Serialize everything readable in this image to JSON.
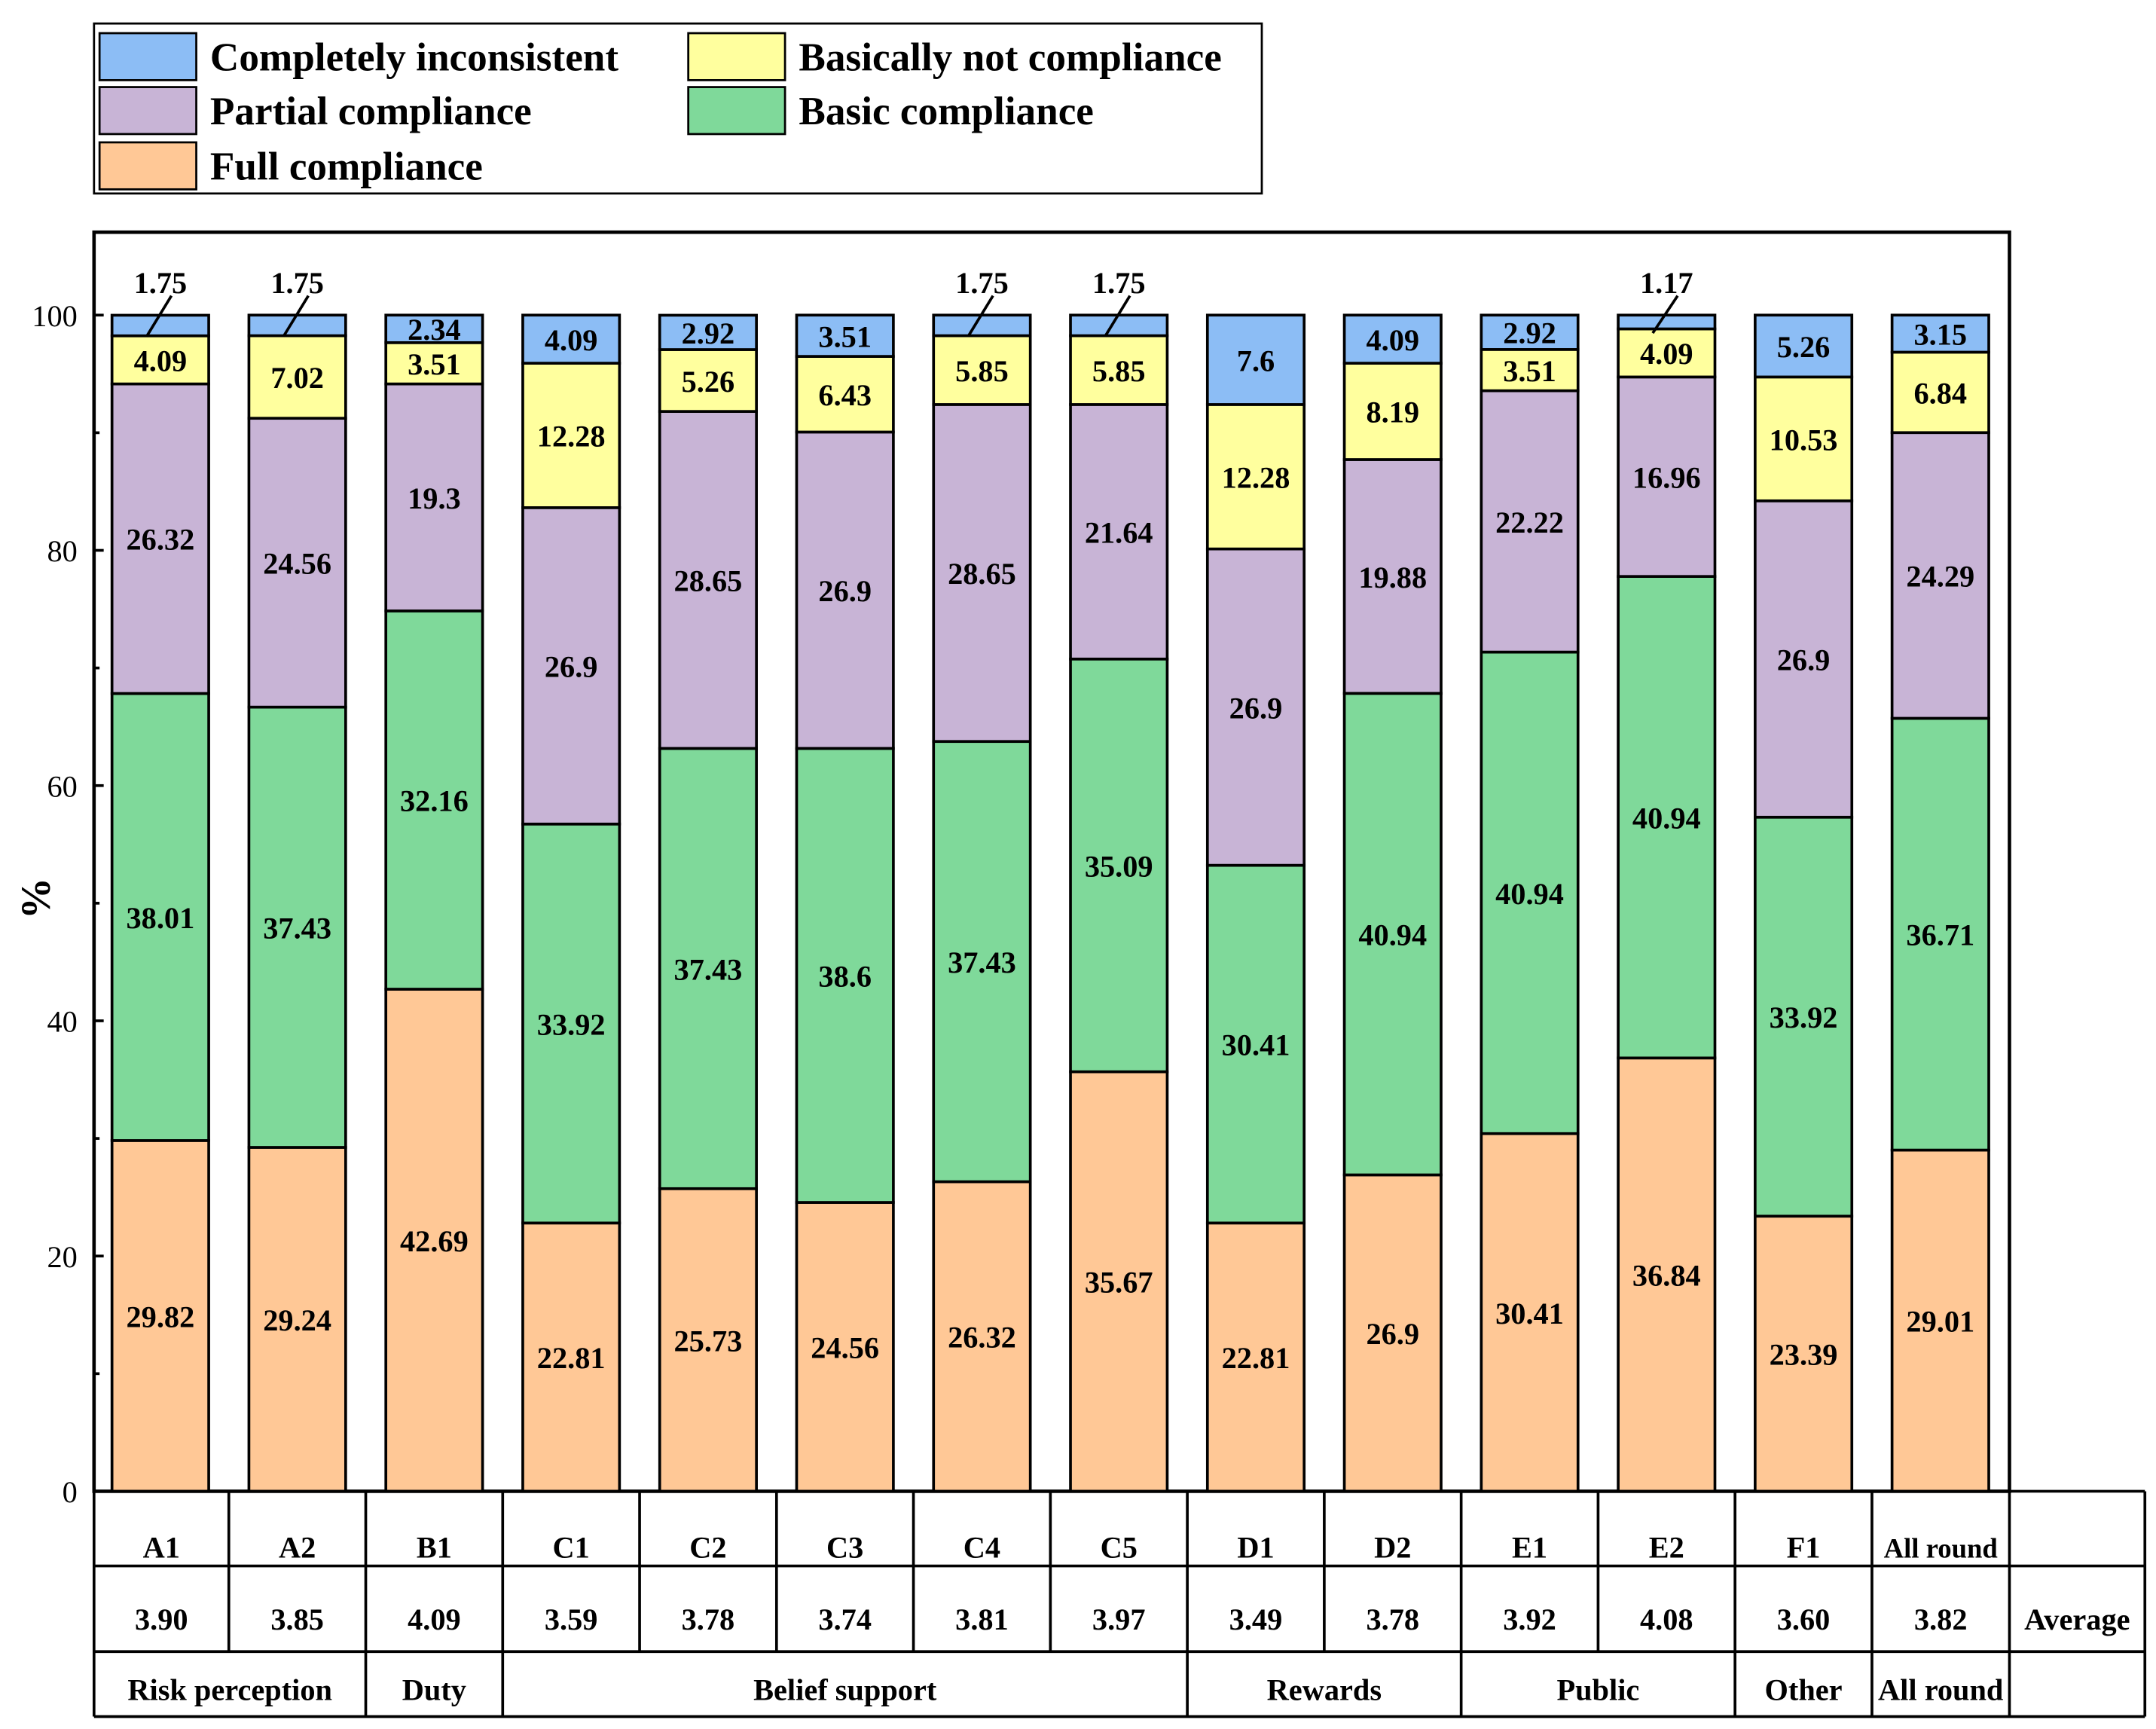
{
  "chart_data": {
    "type": "bar",
    "stacked": true,
    "title": "",
    "xlabel": "",
    "ylabel": "%",
    "ylim": [
      0,
      100
    ],
    "yticks": [
      0,
      20,
      40,
      60,
      80,
      100
    ],
    "grid": false,
    "legend_position": "top-left, outside plot",
    "categories": [
      "A1",
      "A2",
      "B1",
      "C1",
      "C2",
      "C3",
      "C4",
      "C5",
      "D1",
      "D2",
      "E1",
      "E2",
      "F1",
      "All round"
    ],
    "series": [
      {
        "name": "Full compliance",
        "color": "#FFC896",
        "values": [
          29.82,
          29.24,
          42.69,
          22.81,
          25.73,
          24.56,
          26.32,
          35.67,
          22.81,
          26.9,
          30.41,
          36.84,
          23.39,
          29.01
        ]
      },
      {
        "name": "Basic compliance",
        "color": "#7FD99A",
        "values": [
          38.01,
          37.43,
          32.16,
          33.92,
          37.43,
          38.6,
          37.43,
          35.09,
          30.41,
          40.94,
          40.94,
          40.94,
          33.92,
          36.71
        ]
      },
      {
        "name": "Partial compliance",
        "color": "#C8B4D6",
        "values": [
          26.32,
          24.56,
          19.3,
          26.9,
          28.65,
          26.9,
          28.65,
          21.64,
          26.9,
          19.88,
          22.22,
          16.96,
          26.9,
          24.29
        ]
      },
      {
        "name": "Basically not compliance",
        "color": "#FFFF9E",
        "values": [
          4.09,
          7.02,
          3.51,
          12.28,
          5.26,
          6.43,
          5.85,
          5.85,
          12.28,
          8.19,
          3.51,
          4.09,
          10.53,
          6.84
        ]
      },
      {
        "name": "Completely inconsistent",
        "color": "#8CBDF5",
        "values": [
          1.75,
          1.75,
          2.34,
          4.09,
          2.92,
          3.51,
          1.75,
          1.75,
          7.6,
          4.09,
          2.92,
          1.17,
          5.26,
          3.15
        ]
      }
    ],
    "legend_order": [
      "Completely inconsistent",
      "Basically not compliance",
      "Partial compliance",
      "Basic compliance",
      "Full compliance"
    ],
    "table": {
      "averages": [
        "3.90",
        "3.85",
        "4.09",
        "3.59",
        "3.78",
        "3.74",
        "3.81",
        "3.97",
        "3.49",
        "3.78",
        "3.92",
        "4.08",
        "3.60",
        "3.82"
      ],
      "average_label": "Average",
      "groups": [
        {
          "label": "Risk perception",
          "span": 2
        },
        {
          "label": "Duty",
          "span": 1
        },
        {
          "label": "Belief support",
          "span": 5
        },
        {
          "label": "Rewards",
          "span": 2
        },
        {
          "label": "Public",
          "span": 2
        },
        {
          "label": "Other",
          "span": 1
        },
        {
          "label": "All round",
          "span": 1
        }
      ]
    }
  }
}
